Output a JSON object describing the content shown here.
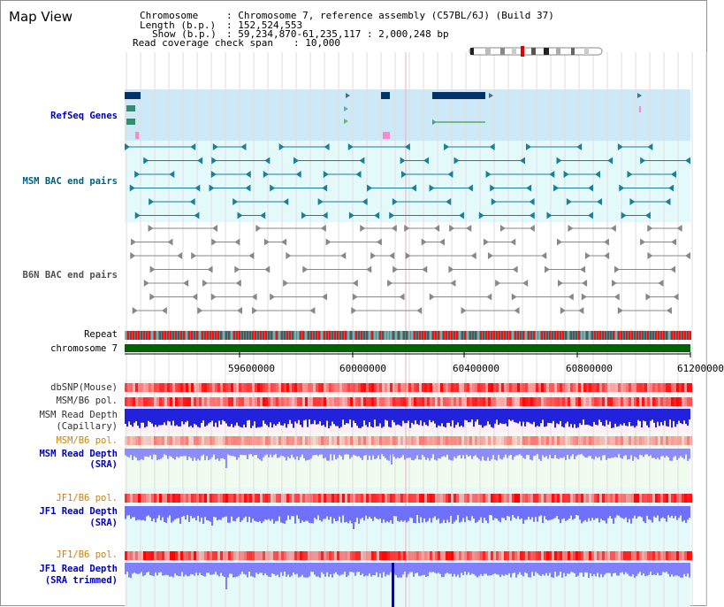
{
  "window": {
    "title": "Map View"
  },
  "info": {
    "chromosome_key": "Chromosome",
    "chromosome_value": ": Chromosome 7, reference assembly (C57BL/6J) (Build 37)",
    "length_key": "Length (b.p.)",
    "length_value": ": 152,524,553",
    "show_key": "Show (b.p.)",
    "show_value": ": 59,234,870-61,235,117 : 2,000,248 bp",
    "span_key": "Read coverage check span",
    "span_value": ": 10,000"
  },
  "tracks": {
    "refseq": "RefSeq Genes",
    "msm_bac": "MSM BAC end pairs",
    "b6n_bac": "B6N BAC end pairs",
    "repeat": "Repeat",
    "chromosome": "chromosome 7",
    "dbsnp": "dbSNP(Mouse)",
    "msm_b6_pol_1": "MSM/B6 pol.",
    "msm_read_depth_cap_1": "MSM Read Depth",
    "msm_read_depth_cap_2": "(Capillary)",
    "msm_b6_pol_2": "MSM/B6 pol.",
    "msm_read_depth_sra_1": "MSM Read Depth",
    "msm_read_depth_sra_2": "(SRA)",
    "jf1_b6_pol_1": "JF1/B6 pol.",
    "jf1_read_depth_1": "JF1 Read Depth",
    "jf1_read_depth_2": "(SRA)",
    "jf1_b6_pol_2": "JF1/B6 pol.",
    "jf1_read_depth_trim_1": "JF1 Read Depth",
    "jf1_read_depth_trim_2": "(SRA trimmed)"
  },
  "ruler": {
    "ticks": [
      "59600000",
      "60000000",
      "60400000",
      "60800000",
      "61200000"
    ]
  },
  "colors": {
    "blue_label": "#0000c0",
    "teal_label": "#006080",
    "gray_label": "#505050",
    "orange_label": "#d08000",
    "refseq_bg": "#cde9f7",
    "bac_bg": "#e4fafa",
    "chromosome_bar": "#006400",
    "dbsnp": "#ff0000",
    "depth": "#0000dd"
  }
}
